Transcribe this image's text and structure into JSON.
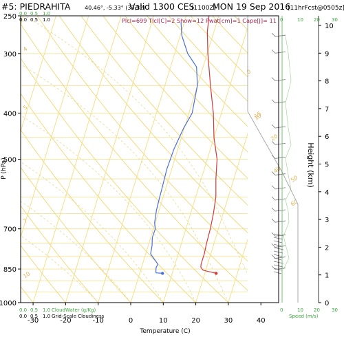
{
  "header": {
    "station": "#5: PIEDRAHITA",
    "coords": "40.46°, -5.33° (33,32)",
    "valid": "Valid 1300 CES",
    "utc": "(1100Z)",
    "date": "MON 19 Sep 2016",
    "forecast": "[11hrFcst@0505z]",
    "indices": "Plcl=699 Tlcl[C]=2 Show=12 Pwat[cm]=1 Cape[J]= 11"
  },
  "scales": {
    "top_left_green": [
      "0.0",
      "0.5",
      "1.0"
    ],
    "top_left_black": [
      "0.0",
      "0.5",
      "1.0"
    ],
    "top_right_green": [
      "0",
      "10",
      "20",
      "30"
    ],
    "bottom_left_green": [
      "0.0",
      "0.5",
      "1.0"
    ],
    "bottom_left_black": [
      "0.0",
      "0.5",
      "1.0"
    ],
    "bottom_right_green": [
      "0",
      "10",
      "20",
      "30"
    ],
    "cloud_water_label": "CloudWater (g/Kg)",
    "cloudiness_label": "Grid-Scale Cloudiness",
    "speed_label": "Speed (m/s)",
    "mixing_ratio_labels": [
      "4",
      "5",
      "7",
      "10",
      "15"
    ],
    "adiabat_labels": [
      "0",
      "10",
      "20",
      "40",
      "50",
      "60"
    ]
  },
  "colors": {
    "temperature": "#d03a3a",
    "dewpoint": "#4a6fd8",
    "isobars": "#f3e6a0",
    "adiabats": "#f0d770",
    "green_scale": "#3aa83a",
    "wind_profile": "#999999",
    "index_text": "#a0204a"
  },
  "chart_data": {
    "type": "line",
    "title": "#5: PIEDRAHITA",
    "xlabel": "Temperature (C)",
    "ylabel": "P (hPa)",
    "y2label": "Height (km)",
    "xlim": [
      -35,
      48
    ],
    "ylim": [
      1000,
      250
    ],
    "y_scale": "log-pressure",
    "x_ticks": [
      -30,
      -20,
      -10,
      0,
      10,
      20,
      30,
      40
    ],
    "pressure_ticks": [
      250,
      300,
      400,
      500,
      700,
      850,
      1000
    ],
    "height_ticks": [
      0,
      1,
      2,
      3,
      4,
      5,
      6,
      7,
      8,
      9,
      10
    ],
    "series": [
      {
        "name": "Temperature",
        "points": [
          [
            23.5,
            868
          ],
          [
            21.5,
            862
          ],
          [
            19.2,
            855
          ],
          [
            18.2,
            843
          ],
          [
            18.0,
            830
          ],
          [
            18.0,
            790
          ],
          [
            17.7,
            750
          ],
          [
            17.5,
            700
          ],
          [
            17.0,
            650
          ],
          [
            16.2,
            600
          ],
          [
            14.5,
            550
          ],
          [
            13.0,
            500
          ],
          [
            10.0,
            450
          ],
          [
            7.5,
            400
          ],
          [
            4.0,
            350
          ],
          [
            0.2,
            300
          ],
          [
            -2.0,
            270
          ],
          [
            -3.0,
            250
          ]
        ]
      },
      {
        "name": "Dewpoint",
        "points": [
          [
            7.0,
            868
          ],
          [
            5.0,
            866
          ],
          [
            4.8,
            860
          ],
          [
            4.5,
            845
          ],
          [
            4.7,
            830
          ],
          [
            1.5,
            790
          ],
          [
            1.2,
            760
          ],
          [
            0.5,
            730
          ],
          [
            0.6,
            700
          ],
          [
            -0.2,
            680
          ],
          [
            -0.8,
            640
          ],
          [
            -1.0,
            610
          ],
          [
            -1.2,
            570
          ],
          [
            -1.5,
            525
          ],
          [
            -1.2,
            475
          ],
          [
            -0.2,
            430
          ],
          [
            1.0,
            400
          ],
          [
            0.0,
            350
          ],
          [
            -2.0,
            320
          ],
          [
            -6.0,
            300
          ],
          [
            -9.5,
            275
          ],
          [
            -11.0,
            258
          ]
        ]
      }
    ],
    "wind_barbs_height_km": [
      9.6,
      9.0,
      8.0,
      7.2,
      6.3,
      5.7,
      5.2,
      4.6,
      4.1,
      3.7,
      3.3,
      2.9,
      2.4,
      2.0,
      1.6,
      1.2
    ],
    "grid": true
  }
}
